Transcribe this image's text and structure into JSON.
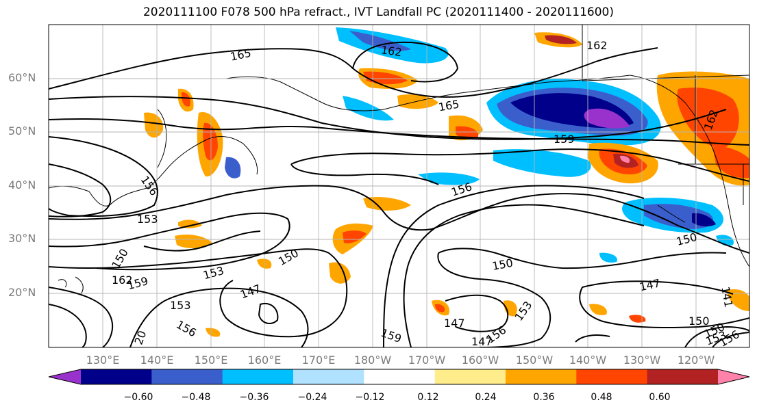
{
  "title": "2020111100 F078 500 hPa refract., IVT Landfall PC (2020111400 - 2020111600)",
  "map": {
    "lat_labels": [
      "60°N",
      "50°N",
      "40°N",
      "30°N",
      "20°N"
    ],
    "lon_labels": [
      "130°E",
      "140°E",
      "150°E",
      "160°E",
      "170°E",
      "180°W",
      "170°W",
      "160°W",
      "150°W",
      "140°W",
      "130°W",
      "120°W"
    ],
    "contour_labels": [
      "165",
      "162",
      "162",
      "165",
      "159",
      "156",
      "156",
      "153",
      "150",
      "150",
      "147",
      "147",
      "153",
      "147",
      "150",
      "162",
      "159",
      "153",
      "156",
      "150",
      "159",
      "156",
      "153",
      "150",
      "147",
      "150",
      "153",
      "156",
      "162",
      "141",
      "20"
    ]
  },
  "colorbar": {
    "ticks": [
      "−0.60",
      "−0.48",
      "−0.36",
      "−0.24",
      "−0.12",
      "0.12",
      "0.24",
      "0.36",
      "0.48",
      "0.60"
    ],
    "colors": [
      "#9932cc",
      "#00008b",
      "#3a5fcd",
      "#00bfff",
      "#b0e2ff",
      "#ffffff",
      "#ffec8b",
      "#ffa500",
      "#ff4500",
      "#b22222",
      "#ff82ab"
    ]
  }
}
